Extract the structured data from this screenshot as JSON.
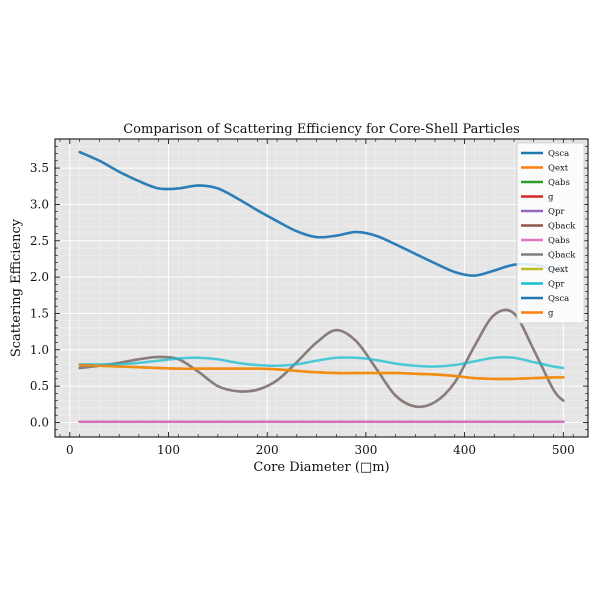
{
  "chart_data": {
    "type": "line",
    "title": "Comparison of Scattering Efficiency for Core-Shell Particles",
    "xlabel": "Core Diameter (□m)",
    "ylabel": "Scattering Efficiency",
    "xlim": [
      -15,
      525
    ],
    "ylim": [
      -0.2,
      3.9
    ],
    "xticks": [
      0,
      100,
      200,
      300,
      400,
      500
    ],
    "xtick_labels": [
      "0",
      "100",
      "200",
      "300",
      "400",
      "500"
    ],
    "yticks": [
      0.0,
      0.5,
      1.0,
      1.5,
      2.0,
      2.5,
      3.0,
      3.5
    ],
    "ytick_labels": [
      "0.0",
      "0.5",
      "1.0",
      "1.5",
      "2.0",
      "2.5",
      "3.0",
      "3.5"
    ],
    "grid": true,
    "background": "#e5e5e5",
    "legend_position": "top-right",
    "x": [
      10,
      30,
      50,
      70,
      90,
      110,
      130,
      150,
      170,
      190,
      210,
      230,
      250,
      270,
      290,
      310,
      330,
      350,
      370,
      390,
      410,
      430,
      450,
      470,
      490,
      500
    ],
    "series": [
      {
        "name": "Qsca",
        "color": "#1f77b4",
        "values": [
          3.72,
          3.6,
          3.45,
          3.32,
          3.22,
          3.22,
          3.26,
          3.22,
          3.08,
          2.92,
          2.77,
          2.63,
          2.55,
          2.57,
          2.62,
          2.57,
          2.45,
          2.32,
          2.19,
          2.07,
          2.02,
          2.09,
          2.17,
          2.17,
          2.11,
          2.08
        ]
      },
      {
        "name": "Qext",
        "color": "#ff7f0e",
        "values": [
          0.79,
          0.78,
          0.77,
          0.76,
          0.75,
          0.74,
          0.74,
          0.74,
          0.74,
          0.74,
          0.73,
          0.71,
          0.69,
          0.68,
          0.68,
          0.68,
          0.68,
          0.67,
          0.66,
          0.64,
          0.61,
          0.6,
          0.6,
          0.61,
          0.62,
          0.62
        ]
      },
      {
        "name": "Qabs",
        "color": "#2ca02c",
        "values": [
          0.01,
          0.01,
          0.01,
          0.01,
          0.01,
          0.01,
          0.01,
          0.01,
          0.01,
          0.01,
          0.01,
          0.01,
          0.01,
          0.01,
          0.01,
          0.01,
          0.01,
          0.01,
          0.01,
          0.01,
          0.01,
          0.01,
          0.01,
          0.01,
          0.01,
          0.01
        ]
      },
      {
        "name": "g",
        "color": "#d62728",
        "values": [
          0.01,
          0.01,
          0.01,
          0.01,
          0.01,
          0.01,
          0.01,
          0.01,
          0.01,
          0.01,
          0.01,
          0.01,
          0.01,
          0.01,
          0.01,
          0.01,
          0.01,
          0.01,
          0.01,
          0.01,
          0.01,
          0.01,
          0.01,
          0.01,
          0.01,
          0.01
        ]
      },
      {
        "name": "Qpr",
        "color": "#9467bd",
        "values": [
          0.01,
          0.01,
          0.01,
          0.01,
          0.01,
          0.01,
          0.01,
          0.01,
          0.01,
          0.01,
          0.01,
          0.01,
          0.01,
          0.01,
          0.01,
          0.01,
          0.01,
          0.01,
          0.01,
          0.01,
          0.01,
          0.01,
          0.01,
          0.01,
          0.01,
          0.01
        ]
      },
      {
        "name": "Qback",
        "color": "#8c564b",
        "values": [
          0.75,
          0.78,
          0.82,
          0.87,
          0.9,
          0.87,
          0.7,
          0.5,
          0.43,
          0.45,
          0.58,
          0.83,
          1.1,
          1.27,
          1.12,
          0.75,
          0.37,
          0.22,
          0.28,
          0.55,
          1.05,
          1.48,
          1.5,
          1.0,
          0.45,
          0.3
        ]
      },
      {
        "name": "Qabs",
        "color": "#e377c2",
        "values": [
          0.01,
          0.01,
          0.01,
          0.01,
          0.01,
          0.01,
          0.01,
          0.01,
          0.01,
          0.01,
          0.01,
          0.01,
          0.01,
          0.01,
          0.01,
          0.01,
          0.01,
          0.01,
          0.01,
          0.01,
          0.01,
          0.01,
          0.01,
          0.01,
          0.01,
          0.01
        ]
      },
      {
        "name": "Qback",
        "color": "#7f7f7f",
        "values": [
          0.75,
          0.78,
          0.82,
          0.87,
          0.9,
          0.87,
          0.7,
          0.5,
          0.43,
          0.45,
          0.58,
          0.83,
          1.1,
          1.27,
          1.12,
          0.75,
          0.37,
          0.22,
          0.28,
          0.55,
          1.05,
          1.48,
          1.5,
          1.0,
          0.45,
          0.3
        ]
      },
      {
        "name": "Qext",
        "color": "#bcbd22",
        "values": [
          0.79,
          0.78,
          0.77,
          0.76,
          0.75,
          0.74,
          0.74,
          0.74,
          0.74,
          0.74,
          0.73,
          0.71,
          0.69,
          0.68,
          0.68,
          0.68,
          0.68,
          0.67,
          0.66,
          0.64,
          0.61,
          0.6,
          0.6,
          0.61,
          0.62,
          0.62
        ]
      },
      {
        "name": "Qpr",
        "color": "#17becf",
        "values": [
          0.8,
          0.8,
          0.8,
          0.82,
          0.85,
          0.88,
          0.89,
          0.87,
          0.82,
          0.79,
          0.78,
          0.8,
          0.85,
          0.89,
          0.89,
          0.86,
          0.81,
          0.78,
          0.77,
          0.79,
          0.84,
          0.89,
          0.89,
          0.83,
          0.77,
          0.75
        ]
      },
      {
        "name": "Qsca",
        "color": "#1f77b4",
        "values": [
          3.72,
          3.6,
          3.45,
          3.32,
          3.22,
          3.22,
          3.26,
          3.22,
          3.08,
          2.92,
          2.77,
          2.63,
          2.55,
          2.57,
          2.62,
          2.57,
          2.45,
          2.32,
          2.19,
          2.07,
          2.02,
          2.09,
          2.17,
          2.17,
          2.11,
          2.08
        ]
      },
      {
        "name": "g",
        "color": "#ff7f0e",
        "values": [
          0.79,
          0.78,
          0.77,
          0.76,
          0.75,
          0.74,
          0.74,
          0.74,
          0.74,
          0.74,
          0.73,
          0.71,
          0.69,
          0.68,
          0.68,
          0.68,
          0.68,
          0.67,
          0.66,
          0.64,
          0.61,
          0.6,
          0.6,
          0.61,
          0.62,
          0.62
        ]
      }
    ]
  }
}
